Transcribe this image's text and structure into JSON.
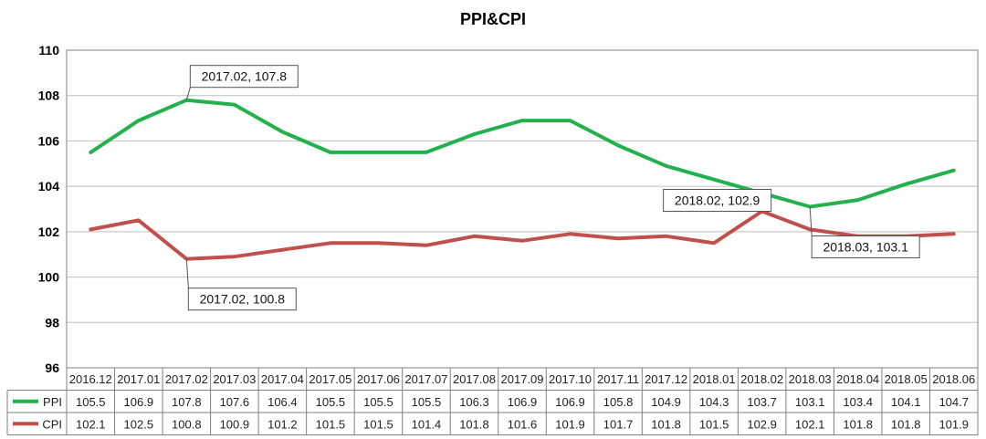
{
  "chart_data": {
    "type": "line",
    "title": "PPI&CPI",
    "categories": [
      "2016.12",
      "2017.01",
      "2017.02",
      "2017.03",
      "2017.04",
      "2017.05",
      "2017.06",
      "2017.07",
      "2017.08",
      "2017.09",
      "2017.10",
      "2017.11",
      "2017.12",
      "2018.01",
      "2018.02",
      "2018.03",
      "2018.04",
      "2018.05",
      "2018.06"
    ],
    "series": [
      {
        "name": "PPI",
        "color": "#22b14c",
        "values": [
          105.5,
          106.9,
          107.8,
          107.6,
          106.4,
          105.5,
          105.5,
          105.5,
          106.3,
          106.9,
          106.9,
          105.8,
          104.9,
          104.3,
          103.7,
          103.1,
          103.4,
          104.1,
          104.7
        ],
        "labels": [
          "105.5",
          "106.9",
          "107.8",
          "107.6",
          "106.4",
          "105.5",
          "105.5",
          "105.5",
          "106.3",
          "106.9",
          "106.9",
          "105.8",
          "104.9",
          "104.3",
          "103.7",
          "103.1",
          "103.4",
          "104.1",
          "104.7"
        ]
      },
      {
        "name": "CPI",
        "color": "#c0504d",
        "values": [
          102.1,
          102.5,
          100.8,
          100.9,
          101.2,
          101.5,
          101.5,
          101.4,
          101.8,
          101.6,
          101.9,
          101.7,
          101.8,
          101.5,
          102.9,
          102.1,
          101.8,
          101.8,
          101.9
        ],
        "labels": [
          "102.1",
          "102.5",
          "100.8",
          "100.9",
          "101.2",
          "101.5",
          "101.5",
          "101.4",
          "101.8",
          "101.6",
          "101.9",
          "101.7",
          "101.8",
          "101.5",
          "102.9",
          "102.1",
          "101.8",
          "101.8",
          "101.9"
        ]
      }
    ],
    "ylim": [
      96,
      110
    ],
    "yticks": [
      96,
      98,
      100,
      102,
      104,
      106,
      108,
      110
    ],
    "ytick_labels": [
      "96",
      "98",
      "100",
      "102",
      "104",
      "106",
      "108",
      "110"
    ],
    "grid": true,
    "legend": "data-table-left",
    "annotations": [
      {
        "series": 0,
        "index": 2,
        "text": "2017.02, 107.8",
        "placement": "above-right"
      },
      {
        "series": 1,
        "index": 2,
        "text": "2017.02, 100.8",
        "placement": "below-right"
      },
      {
        "series": 1,
        "index": 14,
        "text": "2018.02, 102.9",
        "placement": "above-left"
      },
      {
        "series": 0,
        "index": 15,
        "text": "2018.03, 103.1",
        "placement": "below-right"
      }
    ]
  }
}
